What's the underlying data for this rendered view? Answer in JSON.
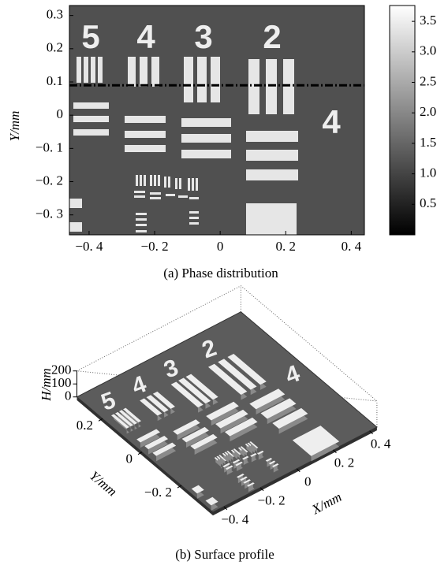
{
  "chart_data": [
    {
      "type": "heatmap",
      "caption": "(a) Phase distribution",
      "ylabel": "Y/mm",
      "xlim": [
        -0.46,
        0.44
      ],
      "ylim": [
        -0.36,
        0.33
      ],
      "xticks": [
        {
          "value": -0.4,
          "label": "−0. 4"
        },
        {
          "value": -0.2,
          "label": "−0. 2"
        },
        0,
        {
          "value": 0.2,
          "label": "0. 2"
        },
        {
          "value": 0.4,
          "label": "0. 4"
        }
      ],
      "yticks": [
        0.3,
        0.2,
        0.1,
        0,
        {
          "value": -0.1,
          "label": "−0. 1"
        },
        {
          "value": -0.2,
          "label": "−0. 2"
        },
        {
          "value": -0.3,
          "label": "−0. 3"
        }
      ],
      "clim": [
        0,
        3.76
      ],
      "cticks": [
        0.5,
        {
          "value": 1,
          "label": "1.0"
        },
        1.5,
        {
          "value": 2,
          "label": "2.0"
        },
        2.5,
        {
          "value": 3,
          "label": "3.0"
        },
        3.5
      ],
      "colormap": [
        "#000000",
        "#ffffff"
      ],
      "profile_line_y": 0.09,
      "group_labels": [
        "5",
        "4",
        "3",
        "2",
        "4"
      ]
    },
    {
      "type": "surface3d",
      "caption": "(b) Surface profile",
      "xlabel": "X/mm",
      "ylabel": "Y/mm",
      "zlabel": "H/mm",
      "xlim": [
        -0.46,
        0.44
      ],
      "ylim": [
        -0.36,
        0.33
      ],
      "zlim": [
        0,
        200
      ],
      "xticks": [
        {
          "value": -0.4,
          "label": "−0. 4"
        },
        {
          "value": -0.2,
          "label": "−0. 2"
        },
        0,
        {
          "value": 0.2,
          "label": "0. 2"
        },
        {
          "value": 0.4,
          "label": "0. 4"
        }
      ],
      "yticks": [
        0.2,
        0,
        {
          "value": -0.2,
          "label": "−0. 2"
        }
      ],
      "zticks": [
        0,
        100,
        200
      ],
      "group_labels": [
        "5",
        "4",
        "3",
        "2",
        "4"
      ]
    }
  ]
}
